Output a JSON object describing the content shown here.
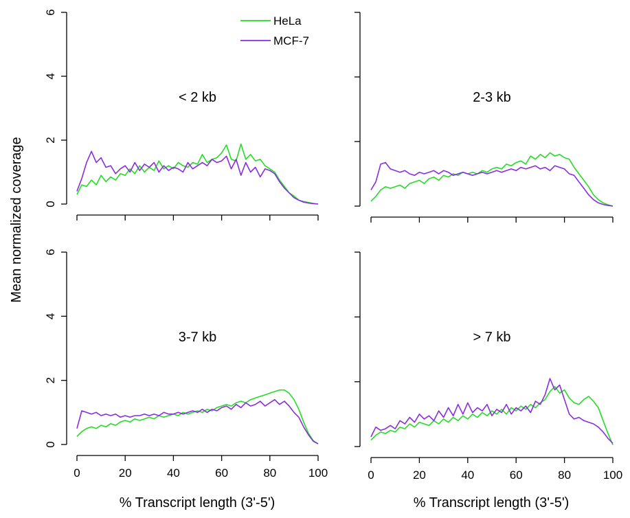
{
  "figure": {
    "ylabel": "Mean normalized coverage",
    "xlabel_left": "% Transcript length (3'-5')",
    "xlabel_right": "% Transcript length (3'-5')",
    "colors": {
      "HeLa": "#22dd22",
      "MCF-7": "#8a2be2"
    },
    "legend": {
      "placement": "top-center",
      "entries": [
        "HeLa",
        "MCF-7"
      ]
    }
  },
  "chart_data": [
    {
      "type": "line",
      "title": "< 2 kb",
      "xlim": [
        0,
        100
      ],
      "ylim": [
        0,
        6
      ],
      "y_ticks": [
        0,
        2,
        4,
        6
      ],
      "x_ticks": [
        0,
        20,
        40,
        60,
        80,
        100
      ],
      "x_tick_labels_visible": false,
      "y_tick_labels_visible": true,
      "legend": true,
      "series": [
        {
          "name": "HeLa",
          "color": "#22dd22",
          "x": [
            0,
            2,
            4,
            6,
            8,
            10,
            12,
            14,
            16,
            18,
            20,
            22,
            24,
            26,
            28,
            30,
            32,
            34,
            36,
            38,
            40,
            42,
            44,
            46,
            48,
            50,
            52,
            54,
            56,
            58,
            60,
            62,
            64,
            66,
            68,
            70,
            72,
            74,
            76,
            78,
            80,
            82,
            84,
            86,
            88,
            90,
            92,
            94,
            96,
            98,
            100
          ],
          "y": [
            0.3,
            0.6,
            0.55,
            0.75,
            0.6,
            0.9,
            0.7,
            0.85,
            0.75,
            0.95,
            0.9,
            1.1,
            0.95,
            1.2,
            1.0,
            1.15,
            1.05,
            1.35,
            1.1,
            1.2,
            1.1,
            1.3,
            1.2,
            1.15,
            1.3,
            1.25,
            1.55,
            1.3,
            1.4,
            1.45,
            1.6,
            1.85,
            1.4,
            1.35,
            1.88,
            1.4,
            1.55,
            1.35,
            1.4,
            1.2,
            1.1,
            1.0,
            0.75,
            0.55,
            0.35,
            0.25,
            0.12,
            0.08,
            0.05,
            0.02,
            0.0
          ]
        },
        {
          "name": "MCF-7",
          "color": "#8a2be2",
          "x": [
            0,
            2,
            4,
            6,
            8,
            10,
            12,
            14,
            16,
            18,
            20,
            22,
            24,
            26,
            28,
            30,
            32,
            34,
            36,
            38,
            40,
            42,
            44,
            46,
            48,
            50,
            52,
            54,
            56,
            58,
            60,
            62,
            64,
            66,
            68,
            70,
            72,
            74,
            76,
            78,
            80,
            82,
            84,
            86,
            88,
            90,
            92,
            94,
            96,
            98,
            100
          ],
          "y": [
            0.4,
            0.8,
            1.3,
            1.65,
            1.3,
            1.45,
            1.15,
            1.2,
            0.95,
            1.1,
            1.2,
            1.0,
            1.3,
            1.05,
            1.25,
            1.15,
            1.3,
            1.0,
            1.2,
            1.05,
            1.15,
            1.1,
            1.0,
            1.3,
            1.1,
            1.2,
            1.3,
            1.2,
            1.4,
            1.3,
            1.35,
            1.5,
            1.1,
            1.4,
            0.9,
            1.3,
            1.0,
            1.15,
            0.85,
            1.1,
            1.05,
            0.95,
            0.7,
            0.5,
            0.35,
            0.2,
            0.12,
            0.06,
            0.03,
            0.01,
            0.0
          ]
        }
      ]
    },
    {
      "type": "line",
      "title": "2-3 kb",
      "xlim": [
        0,
        100
      ],
      "ylim": [
        0,
        6
      ],
      "y_ticks": [
        0,
        2,
        4,
        6
      ],
      "x_ticks": [
        0,
        20,
        40,
        60,
        80,
        100
      ],
      "x_tick_labels_visible": false,
      "y_tick_labels_visible": false,
      "legend": false,
      "series": [
        {
          "name": "HeLa",
          "color": "#22dd22",
          "x": [
            0,
            2,
            4,
            6,
            8,
            10,
            12,
            14,
            16,
            18,
            20,
            22,
            24,
            26,
            28,
            30,
            32,
            34,
            36,
            38,
            40,
            42,
            44,
            46,
            48,
            50,
            52,
            54,
            56,
            58,
            60,
            62,
            64,
            66,
            68,
            70,
            72,
            74,
            76,
            78,
            80,
            82,
            84,
            86,
            88,
            90,
            92,
            94,
            96,
            98,
            100
          ],
          "y": [
            0.15,
            0.3,
            0.5,
            0.6,
            0.55,
            0.6,
            0.65,
            0.55,
            0.7,
            0.75,
            0.8,
            0.7,
            0.85,
            0.9,
            0.8,
            0.95,
            0.9,
            1.0,
            0.95,
            1.05,
            1.0,
            1.05,
            1.0,
            1.1,
            1.05,
            1.15,
            1.2,
            1.15,
            1.3,
            1.25,
            1.35,
            1.4,
            1.3,
            1.55,
            1.45,
            1.6,
            1.5,
            1.65,
            1.55,
            1.6,
            1.5,
            1.45,
            1.2,
            1.0,
            0.8,
            0.6,
            0.35,
            0.2,
            0.1,
            0.04,
            0.0
          ]
        },
        {
          "name": "MCF-7",
          "color": "#8a2be2",
          "x": [
            0,
            2,
            4,
            6,
            8,
            10,
            12,
            14,
            16,
            18,
            20,
            22,
            24,
            26,
            28,
            30,
            32,
            34,
            36,
            38,
            40,
            42,
            44,
            46,
            48,
            50,
            52,
            54,
            56,
            58,
            60,
            62,
            64,
            66,
            68,
            70,
            72,
            74,
            76,
            78,
            80,
            82,
            84,
            86,
            88,
            90,
            92,
            94,
            96,
            98,
            100
          ],
          "y": [
            0.5,
            0.75,
            1.3,
            1.35,
            1.15,
            1.1,
            1.05,
            1.1,
            1.0,
            0.95,
            1.05,
            1.0,
            1.05,
            1.1,
            1.0,
            1.1,
            1.05,
            0.95,
            1.0,
            1.05,
            1.0,
            0.95,
            1.0,
            1.05,
            1.0,
            1.05,
            1.1,
            1.05,
            1.1,
            1.15,
            1.1,
            1.2,
            1.15,
            1.2,
            1.25,
            1.15,
            1.2,
            1.1,
            1.25,
            1.2,
            1.15,
            1.0,
            0.95,
            0.75,
            0.55,
            0.35,
            0.2,
            0.1,
            0.05,
            0.02,
            0.0
          ]
        }
      ]
    },
    {
      "type": "line",
      "title": "3-7 kb",
      "xlim": [
        0,
        100
      ],
      "ylim": [
        0,
        6
      ],
      "y_ticks": [
        0,
        2,
        4,
        6
      ],
      "x_ticks": [
        0,
        20,
        40,
        60,
        80,
        100
      ],
      "x_tick_labels_visible": true,
      "y_tick_labels_visible": true,
      "legend": false,
      "series": [
        {
          "name": "HeLa",
          "color": "#22dd22",
          "x": [
            0,
            2,
            4,
            6,
            8,
            10,
            12,
            14,
            16,
            18,
            20,
            22,
            24,
            26,
            28,
            30,
            32,
            34,
            36,
            38,
            40,
            42,
            44,
            46,
            48,
            50,
            52,
            54,
            56,
            58,
            60,
            62,
            64,
            66,
            68,
            70,
            72,
            74,
            76,
            78,
            80,
            82,
            84,
            86,
            88,
            90,
            92,
            94,
            96,
            98,
            100
          ],
          "y": [
            0.25,
            0.4,
            0.5,
            0.55,
            0.5,
            0.6,
            0.55,
            0.65,
            0.6,
            0.7,
            0.75,
            0.7,
            0.8,
            0.75,
            0.8,
            0.85,
            0.8,
            0.9,
            0.85,
            0.9,
            0.95,
            0.9,
            1.0,
            0.95,
            1.0,
            1.05,
            1.0,
            1.1,
            1.05,
            1.15,
            1.2,
            1.25,
            1.2,
            1.3,
            1.35,
            1.3,
            1.4,
            1.45,
            1.5,
            1.55,
            1.6,
            1.65,
            1.7,
            1.7,
            1.6,
            1.4,
            1.1,
            0.7,
            0.35,
            0.12,
            0.02
          ]
        },
        {
          "name": "MCF-7",
          "color": "#8a2be2",
          "x": [
            0,
            2,
            4,
            6,
            8,
            10,
            12,
            14,
            16,
            18,
            20,
            22,
            24,
            26,
            28,
            30,
            32,
            34,
            36,
            38,
            40,
            42,
            44,
            46,
            48,
            50,
            52,
            54,
            56,
            58,
            60,
            62,
            64,
            66,
            68,
            70,
            72,
            74,
            76,
            78,
            80,
            82,
            84,
            86,
            88,
            90,
            92,
            94,
            96,
            98,
            100
          ],
          "y": [
            0.5,
            1.05,
            1.0,
            0.95,
            1.0,
            0.9,
            0.95,
            0.9,
            0.95,
            0.85,
            0.9,
            0.85,
            0.9,
            0.9,
            0.95,
            0.9,
            0.95,
            0.9,
            1.0,
            0.95,
            0.95,
            1.0,
            0.95,
            1.0,
            1.05,
            1.0,
            1.1,
            1.0,
            1.1,
            1.05,
            1.15,
            1.2,
            1.1,
            1.25,
            1.15,
            1.3,
            1.2,
            1.25,
            1.35,
            1.2,
            1.3,
            1.4,
            1.25,
            1.35,
            1.2,
            1.0,
            0.85,
            0.55,
            0.3,
            0.1,
            0.02
          ]
        }
      ]
    },
    {
      "type": "line",
      "title": "> 7 kb",
      "xlim": [
        0,
        100
      ],
      "ylim": [
        0,
        6
      ],
      "y_ticks": [
        0,
        2,
        4,
        6
      ],
      "x_ticks": [
        0,
        20,
        40,
        60,
        80,
        100
      ],
      "x_tick_labels_visible": true,
      "y_tick_labels_visible": false,
      "legend": false,
      "series": [
        {
          "name": "HeLa",
          "color": "#22dd22",
          "x": [
            0,
            2,
            4,
            6,
            8,
            10,
            12,
            14,
            16,
            18,
            20,
            22,
            24,
            26,
            28,
            30,
            32,
            34,
            36,
            38,
            40,
            42,
            44,
            46,
            48,
            50,
            52,
            54,
            56,
            58,
            60,
            62,
            64,
            66,
            68,
            70,
            72,
            74,
            76,
            78,
            80,
            82,
            84,
            86,
            88,
            90,
            92,
            94,
            96,
            98,
            100
          ],
          "y": [
            0.2,
            0.35,
            0.45,
            0.4,
            0.5,
            0.45,
            0.6,
            0.55,
            0.7,
            0.6,
            0.75,
            0.7,
            0.65,
            0.8,
            0.7,
            0.85,
            0.75,
            0.9,
            0.8,
            0.95,
            0.85,
            1.0,
            0.9,
            1.05,
            0.95,
            1.1,
            1.0,
            1.15,
            1.0,
            1.2,
            1.1,
            1.25,
            1.15,
            1.3,
            1.2,
            1.35,
            1.45,
            1.7,
            1.85,
            1.65,
            1.75,
            1.5,
            1.35,
            1.3,
            1.45,
            1.55,
            1.4,
            1.2,
            0.8,
            0.4,
            0.05
          ]
        },
        {
          "name": "MCF-7",
          "color": "#8a2be2",
          "x": [
            0,
            2,
            4,
            6,
            8,
            10,
            12,
            14,
            16,
            18,
            20,
            22,
            24,
            26,
            28,
            30,
            32,
            34,
            36,
            38,
            40,
            42,
            44,
            46,
            48,
            50,
            52,
            54,
            56,
            58,
            60,
            62,
            64,
            66,
            68,
            70,
            72,
            74,
            76,
            78,
            80,
            82,
            84,
            86,
            88,
            90,
            92,
            94,
            96,
            98,
            100
          ],
          "y": [
            0.3,
            0.6,
            0.5,
            0.55,
            0.65,
            0.55,
            0.8,
            0.7,
            0.9,
            0.75,
            1.0,
            0.85,
            0.95,
            0.8,
            1.1,
            0.9,
            1.2,
            0.95,
            1.3,
            1.0,
            1.35,
            1.05,
            1.2,
            1.1,
            1.3,
            0.95,
            1.15,
            1.05,
            1.3,
            1.0,
            1.2,
            1.1,
            1.25,
            1.05,
            1.4,
            1.3,
            1.6,
            2.1,
            1.75,
            1.9,
            1.45,
            1.0,
            0.85,
            0.9,
            0.8,
            0.75,
            0.7,
            0.6,
            0.45,
            0.25,
            0.1
          ]
        }
      ]
    }
  ]
}
